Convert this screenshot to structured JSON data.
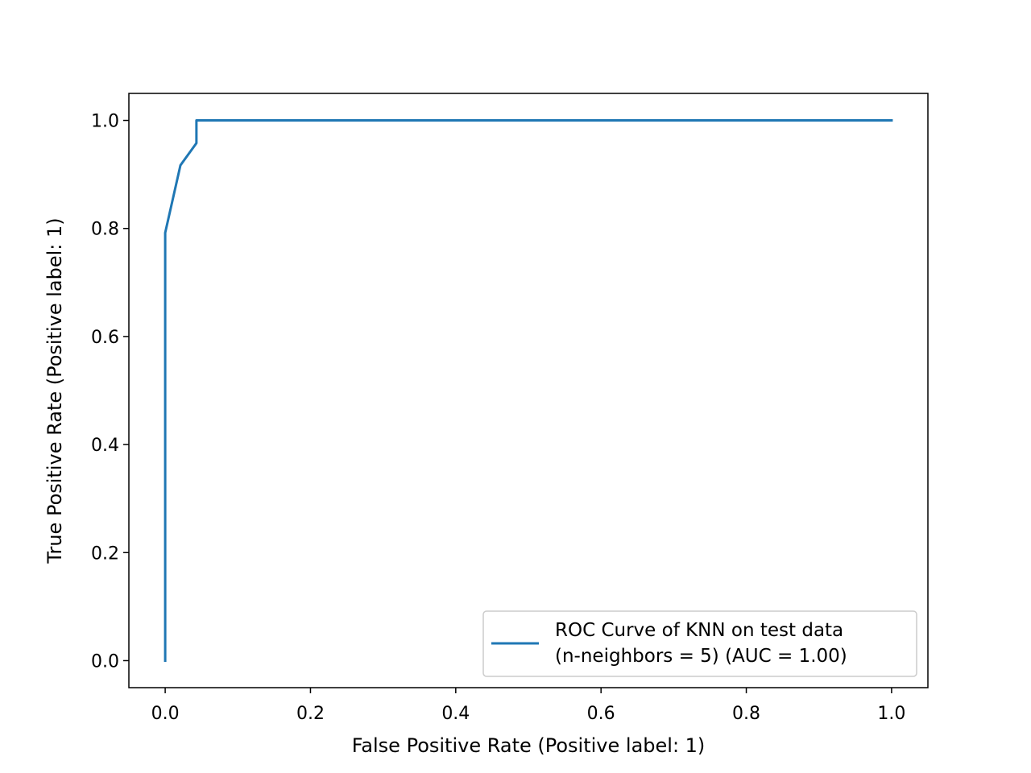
{
  "chart_data": {
    "type": "line",
    "title": "",
    "xlabel": "False Positive Rate (Positive label: 1)",
    "ylabel": "True Positive Rate (Positive label: 1)",
    "xlim": [
      -0.05,
      1.05
    ],
    "ylim": [
      -0.05,
      1.05
    ],
    "xticks": [
      0.0,
      0.2,
      0.4,
      0.6,
      0.8,
      1.0
    ],
    "yticks": [
      0.0,
      0.2,
      0.4,
      0.6,
      0.8,
      1.0
    ],
    "xtick_labels": [
      "0.0",
      "0.2",
      "0.4",
      "0.6",
      "0.8",
      "1.0"
    ],
    "ytick_labels": [
      "0.0",
      "0.2",
      "0.4",
      "0.6",
      "0.8",
      "1.0"
    ],
    "grid": false,
    "legend_position": "lower right",
    "series": [
      {
        "name_lines": [
          "ROC Curve of KNN on test data",
          "(n-neighbors = 5) (AUC = 1.00)"
        ],
        "color": "#1f77b4",
        "x": [
          0.0,
          0.0,
          0.021,
          0.043,
          0.043,
          1.0
        ],
        "y": [
          0.0,
          0.792,
          0.917,
          0.958,
          1.0,
          1.0
        ]
      }
    ]
  }
}
